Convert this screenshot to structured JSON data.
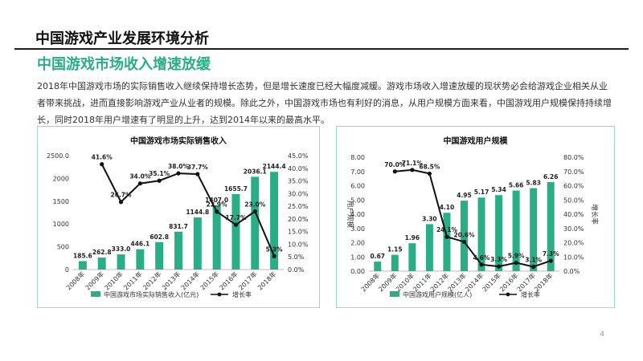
{
  "slide_title": "中国游戏产业发展环境分析",
  "subtitle": "中国游戏市场收入增速放缓",
  "paragraph": "2018年中国游戏市场的实际销售收入继续保持增长态势，但是增长速度已经大幅度减缓。游戏市场收入增速放缓的现状势必会给游戏企业相关从业者带来挑战，进而直接影响游戏产业从业者的规模。除此之外，中国游戏市场也有利好的消息，从用户规模方面来看，中国游戏用户规模保持持续增长，同时2018年用户增速有了明显的上升，达到2014年以来的最高水平。",
  "page_number": "4",
  "colors": {
    "bar": "#2aae88",
    "line": "#111111",
    "accent": "#2aae88"
  },
  "chart_data": [
    {
      "type": "bar",
      "title": "中国游戏市场实际销售收入",
      "categories": [
        "2008年",
        "2009年",
        "2010年",
        "2011年",
        "2012年",
        "2013年",
        "2014年",
        "2015年",
        "2016年",
        "2017年",
        "2018年"
      ],
      "series": [
        {
          "name": "中国游戏市场实际销售收入(亿元)",
          "type": "bar",
          "axis": "left",
          "values": [
            185.6,
            262.8,
            333.0,
            446.1,
            602.8,
            831.7,
            1144.8,
            1407.0,
            1655.7,
            2036.1,
            2144.4
          ],
          "labels": [
            "185.6",
            "262.8",
            "333.0",
            "446.1",
            "602.8",
            "831.7",
            "1144.8",
            "1407.0",
            "1655.7",
            "2036.1",
            "2144.4"
          ]
        },
        {
          "name": "增长率",
          "type": "line",
          "axis": "right",
          "values": [
            null,
            41.6,
            26.7,
            34.0,
            35.1,
            38.0,
            37.7,
            22.9,
            17.7,
            23.0,
            5.3
          ],
          "labels": [
            "",
            "41.6%",
            "26.7%",
            "34.0%",
            "35.1%",
            "38.0%",
            "37.7%",
            "22.9%",
            "17.7%",
            "23.0%",
            "5.3%"
          ]
        }
      ],
      "ylim": [
        0,
        2500
      ],
      "yticks": [
        0,
        500,
        1000,
        1500,
        2000,
        2500
      ],
      "ytick_labels": [
        "0",
        "500",
        "1000",
        "1500",
        "2000",
        "2500.0"
      ],
      "y2lim": [
        0,
        45
      ],
      "y2ticks": [
        0,
        5,
        10,
        15,
        20,
        25,
        30,
        35,
        40,
        45
      ],
      "y2tick_labels": [
        "0.0%",
        "5.0%",
        "10.0%",
        "15.0%",
        "20.0%",
        "25.0%",
        "30.0%",
        "35.0%",
        "40.0%",
        "45.0%"
      ],
      "ylabel": "",
      "y2label": "",
      "xlabel": "",
      "grid": false,
      "legend": "bottom"
    },
    {
      "type": "bar",
      "title": "中国游戏用户规模",
      "categories": [
        "2008年",
        "2009年",
        "2010年",
        "2011年",
        "2012年",
        "2013年",
        "2014年",
        "2015年",
        "2016年",
        "2017年",
        "2018年"
      ],
      "series": [
        {
          "name": "中国游戏用户规模(亿人)",
          "type": "bar",
          "axis": "left",
          "values": [
            0.67,
            1.15,
            1.96,
            3.3,
            4.1,
            4.95,
            5.17,
            5.34,
            5.66,
            5.83,
            6.26
          ],
          "labels": [
            "0.67",
            "1.15",
            "1.96",
            "3.30",
            "4.10",
            "4.95",
            "5.17",
            "5.34",
            "5.66",
            "5.83",
            "6.26"
          ]
        },
        {
          "name": "增长率",
          "type": "line",
          "axis": "right",
          "values": [
            null,
            70.0,
            71.1,
            68.5,
            24.1,
            20.6,
            4.6,
            3.3,
            5.9,
            3.1,
            7.3
          ],
          "labels": [
            "",
            "70.0%",
            "71.1%",
            "68.5%",
            "24.1%",
            "20.6%",
            "4.6%",
            "3.3%",
            "5.9%",
            "3.1%",
            "7.3%"
          ]
        }
      ],
      "ylim": [
        0,
        8
      ],
      "yticks": [
        0,
        1,
        2,
        3,
        4,
        5,
        6,
        7,
        8
      ],
      "ytick_labels": [
        "0.00",
        "1.00",
        "2.00",
        "3.00",
        "4.00",
        "5.00",
        "6.00",
        "7.00",
        "8.00"
      ],
      "y2lim": [
        0,
        80
      ],
      "y2ticks": [
        0,
        10,
        20,
        30,
        40,
        50,
        60,
        70,
        80
      ],
      "y2tick_labels": [
        "0.0%",
        "10.0%",
        "20.0%",
        "30.0%",
        "40.0%",
        "50.0%",
        "60.0%",
        "70.0%",
        "80.0%"
      ],
      "ylabel": "用户规模",
      "y2label": "增长率",
      "xlabel": "",
      "grid": false,
      "legend": "bottom"
    }
  ]
}
